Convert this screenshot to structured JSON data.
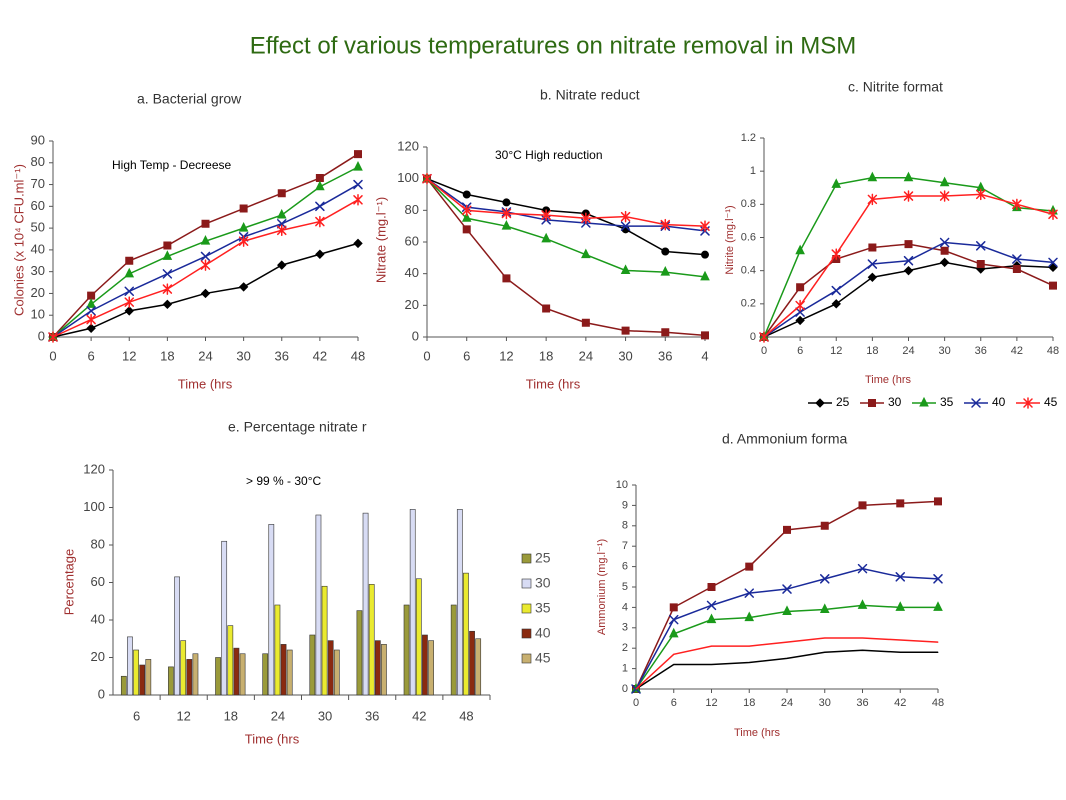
{
  "title": "Effect of various temperatures on nitrate removal in MSM",
  "chart_data": [
    {
      "type": "line",
      "title": "a. Bacterial grow",
      "x_label": "Time (hrs",
      "y_label": "Colonies (x 10⁴ CFU.ml⁻¹)",
      "annotation": "High Temp - Decreese",
      "x": [
        0,
        6,
        12,
        18,
        24,
        30,
        36,
        42,
        48
      ],
      "xlim": [
        0,
        48
      ],
      "xticks": [
        0,
        6,
        12,
        18,
        24,
        30,
        36,
        42,
        48
      ],
      "ylim": [
        0,
        90
      ],
      "yticks": [
        0,
        10,
        20,
        30,
        40,
        50,
        60,
        70,
        80,
        90
      ],
      "series": [
        {
          "color": "#000000",
          "marker": "diamond",
          "values": [
            0,
            4,
            12,
            15,
            20,
            23,
            33,
            38,
            43
          ]
        },
        {
          "color": "#8b1a1a",
          "marker": "square",
          "values": [
            0,
            19,
            35,
            42,
            52,
            59,
            66,
            73,
            84
          ]
        },
        {
          "color": "#1a9a1a",
          "marker": "triangle",
          "values": [
            0,
            15,
            29,
            37,
            44,
            50,
            56,
            69,
            78
          ]
        },
        {
          "color": "#1a2a9a",
          "marker": "x",
          "values": [
            0,
            12,
            21,
            29,
            37,
            46,
            52,
            60,
            70
          ]
        },
        {
          "color": "#ff2020",
          "marker": "asterisk",
          "values": [
            0,
            8,
            16,
            22,
            33,
            44,
            49,
            53,
            63
          ]
        }
      ]
    },
    {
      "type": "line",
      "title": "b. Nitrate reduct",
      "x_label": "Time (hrs",
      "y_label": "Nitrate (mg.l⁻¹)",
      "annotation": "30°C High reduction",
      "x": [
        0,
        6,
        12,
        18,
        24,
        30,
        36,
        42
      ],
      "xlim": [
        0,
        42
      ],
      "xticks": [
        0,
        6,
        12,
        18,
        24,
        30,
        36,
        {
          "value": 42,
          "label": "4"
        }
      ],
      "ylim": [
        0,
        120
      ],
      "yticks": [
        0,
        20,
        40,
        60,
        80,
        100,
        120
      ],
      "series": [
        {
          "color": "#000000",
          "marker": "circle",
          "values": [
            100,
            90,
            85,
            80,
            78,
            68,
            54,
            52
          ]
        },
        {
          "color": "#8b1a1a",
          "marker": "square",
          "values": [
            100,
            68,
            37,
            18,
            9,
            4,
            3,
            1
          ]
        },
        {
          "color": "#1a9a1a",
          "marker": "triangle",
          "values": [
            100,
            75,
            70,
            62,
            52,
            42,
            41,
            38
          ]
        },
        {
          "color": "#1a2a9a",
          "marker": "x",
          "values": [
            100,
            82,
            79,
            74,
            72,
            70,
            70,
            67
          ]
        },
        {
          "color": "#ff2020",
          "marker": "asterisk",
          "values": [
            100,
            80,
            78,
            77,
            75,
            76,
            71,
            70
          ]
        }
      ]
    },
    {
      "type": "line",
      "title": "c. Nitrite format",
      "x_label": "Time (hrs",
      "y_label": "Nitrite (mg.l⁻¹)",
      "x": [
        0,
        6,
        12,
        18,
        24,
        30,
        36,
        42,
        48
      ],
      "xlim": [
        0,
        48
      ],
      "xticks": [
        0,
        6,
        12,
        18,
        24,
        30,
        36,
        42,
        48
      ],
      "ylim": [
        0,
        1.2
      ],
      "yticks": [
        0,
        0.2,
        0.4,
        0.6,
        0.8,
        1,
        1.2
      ],
      "legend": "bottom",
      "series": [
        {
          "name": "25",
          "color": "#000000",
          "marker": "diamond",
          "values": [
            0,
            0.1,
            0.2,
            0.36,
            0.4,
            0.45,
            0.41,
            0.43,
            0.42
          ]
        },
        {
          "name": "30",
          "color": "#8b1a1a",
          "marker": "square",
          "values": [
            0,
            0.3,
            0.47,
            0.54,
            0.56,
            0.52,
            0.44,
            0.41,
            0.31
          ]
        },
        {
          "name": "35",
          "color": "#1a9a1a",
          "marker": "triangle",
          "values": [
            0,
            0.52,
            0.92,
            0.96,
            0.96,
            0.93,
            0.9,
            0.78,
            0.76
          ]
        },
        {
          "name": "40",
          "color": "#1a2a9a",
          "marker": "x",
          "values": [
            0,
            0.15,
            0.28,
            0.44,
            0.46,
            0.57,
            0.55,
            0.47,
            0.45
          ]
        },
        {
          "name": "45",
          "color": "#ff2020",
          "marker": "asterisk",
          "values": [
            0,
            0.19,
            0.5,
            0.83,
            0.85,
            0.85,
            0.86,
            0.8,
            0.74
          ]
        }
      ]
    },
    {
      "type": "line",
      "title": "d. Ammonium forma",
      "x_label": "Time (hrs",
      "y_label": "Ammonium (mg.l⁻¹)",
      "x": [
        0,
        6,
        12,
        18,
        24,
        30,
        36,
        42,
        48
      ],
      "xlim": [
        0,
        48
      ],
      "xticks": [
        0,
        6,
        12,
        18,
        24,
        30,
        36,
        42,
        48
      ],
      "ylim": [
        0,
        10
      ],
      "yticks": [
        0,
        1,
        2,
        3,
        4,
        5,
        6,
        7,
        8,
        9,
        10
      ],
      "series": [
        {
          "color": "#000000",
          "marker": "none",
          "values": [
            0,
            1.2,
            1.2,
            1.3,
            1.5,
            1.8,
            1.9,
            1.8,
            1.8
          ]
        },
        {
          "color": "#8b1a1a",
          "marker": "square",
          "values": [
            0,
            4,
            5,
            6,
            7.8,
            8,
            9,
            9.1,
            9.2
          ]
        },
        {
          "color": "#1a9a1a",
          "marker": "triangle",
          "values": [
            0,
            2.7,
            3.4,
            3.5,
            3.8,
            3.9,
            4.1,
            4,
            4
          ]
        },
        {
          "color": "#1a2a9a",
          "marker": "x",
          "values": [
            0,
            3.4,
            4.1,
            4.7,
            4.9,
            5.4,
            5.9,
            5.5,
            5.4
          ]
        },
        {
          "color": "#ff2020",
          "marker": "none",
          "values": [
            0,
            1.7,
            2.1,
            2.1,
            2.3,
            2.5,
            2.5,
            2.4,
            2.3
          ]
        }
      ]
    },
    {
      "type": "bar",
      "title": "e. Percentage nitrate r",
      "x_label": "Time (hrs",
      "y_label": "Percentage",
      "annotation": "> 99 % - 30°C",
      "categories": [
        "6",
        "12",
        "18",
        "24",
        "30",
        "36",
        "42",
        "48"
      ],
      "ylim": [
        0,
        120
      ],
      "yticks": [
        0,
        20,
        40,
        60,
        80,
        100,
        120
      ],
      "legend": "right",
      "series": [
        {
          "name": "25",
          "color": "#9a9a3a",
          "values": [
            10,
            15,
            20,
            22,
            32,
            45,
            48,
            48
          ]
        },
        {
          "name": "30",
          "color": "#d8dcf4",
          "values": [
            31,
            63,
            82,
            91,
            96,
            97,
            99,
            99
          ]
        },
        {
          "name": "35",
          "color": "#eaea30",
          "values": [
            24,
            29,
            37,
            48,
            58,
            59,
            62,
            65
          ]
        },
        {
          "name": "40",
          "color": "#8a2a10",
          "values": [
            16,
            19,
            25,
            27,
            29,
            29,
            32,
            34
          ]
        },
        {
          "name": "45",
          "color": "#c8b070",
          "values": [
            19,
            22,
            22,
            24,
            24,
            27,
            29,
            30
          ]
        }
      ]
    }
  ]
}
